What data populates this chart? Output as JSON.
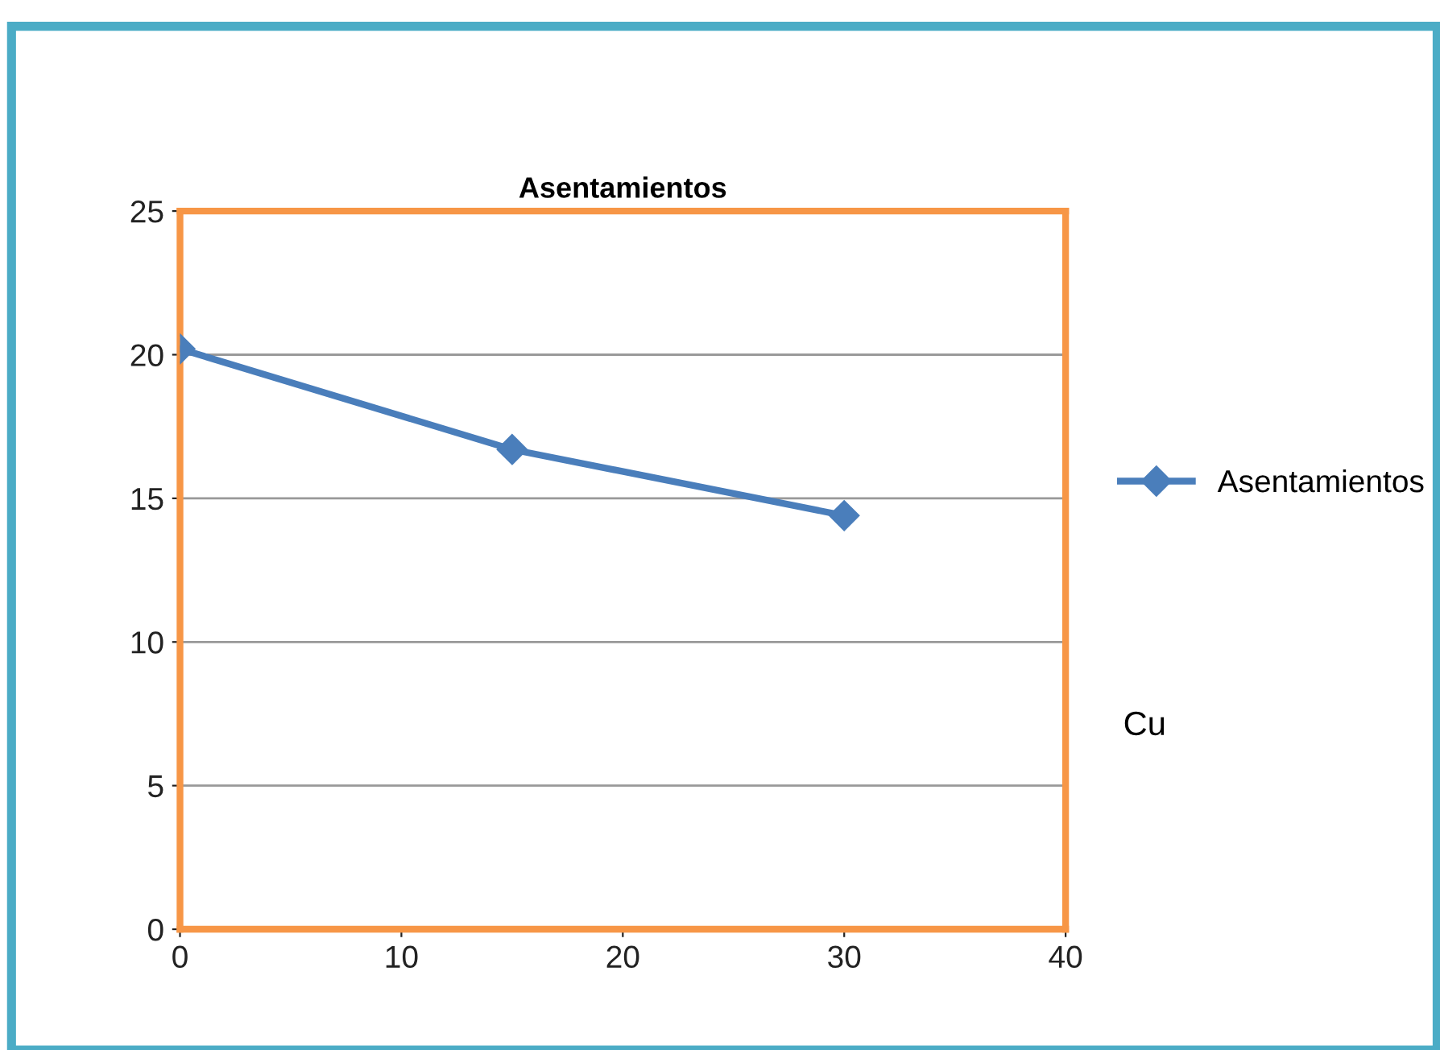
{
  "chart_data": {
    "type": "line",
    "title": "Asentamientos",
    "x": [
      0,
      15,
      30
    ],
    "series": [
      {
        "name": "Asentamientos",
        "color": "#4a7ebb",
        "values": [
          20.2,
          16.7,
          14.4
        ]
      }
    ],
    "xlim": [
      0,
      40
    ],
    "xticks": [
      0,
      10,
      20,
      30,
      40
    ],
    "ylim": [
      0,
      25
    ],
    "yticks": [
      0,
      5,
      10,
      15,
      20,
      25
    ],
    "grid": "y",
    "legend": "right",
    "marker": "diamond",
    "line_style": "solid",
    "annotations": [
      "Cu"
    ]
  }
}
